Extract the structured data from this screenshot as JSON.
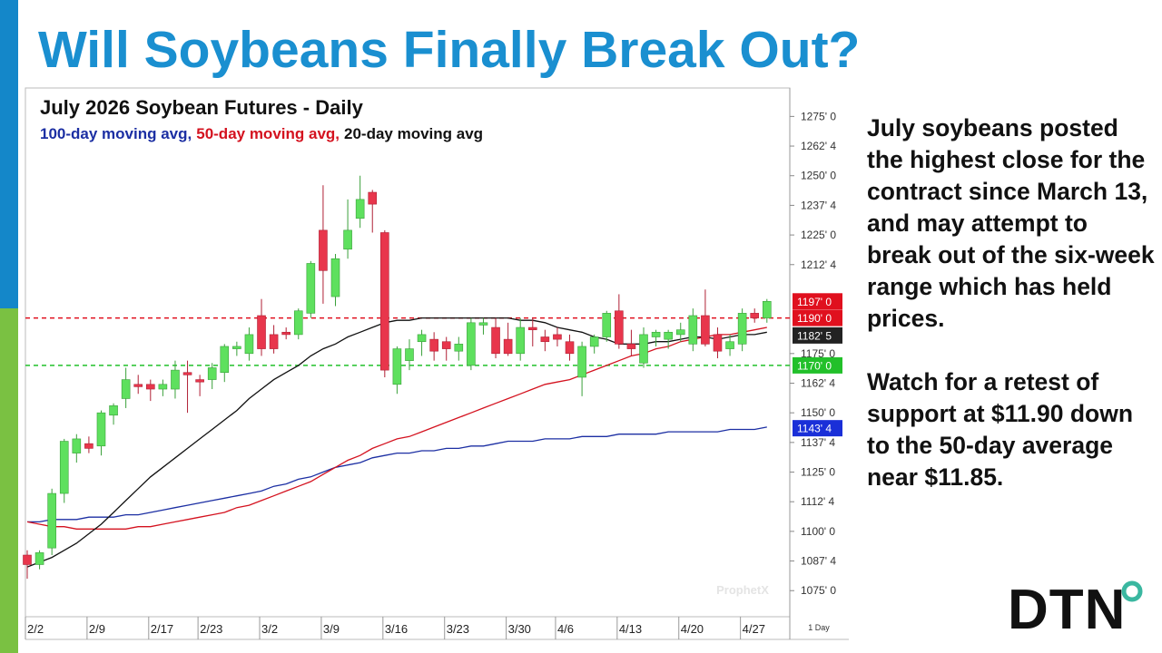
{
  "headline": "Will Soybeans Finally Break Out?",
  "commentary": [
    "July soybeans posted the highest close for the contract since March 13, and may attempt to break out of the six-week range which has held prices.",
    "Watch for a retest of support at $11.90 down to the 50-day average near $11.85."
  ],
  "logo": "DTN",
  "watermark": "ProphetX",
  "chart_data": {
    "type": "candlestick",
    "title": "July 2026 Soybean Futures - Daily",
    "categories": [
      "2/2",
      null,
      null,
      null,
      null,
      "2/9",
      null,
      null,
      null,
      null,
      "2/17",
      null,
      null,
      null,
      "2/23",
      null,
      null,
      null,
      null,
      "3/2",
      null,
      null,
      null,
      null,
      "3/9",
      null,
      null,
      null,
      null,
      "3/16",
      null,
      null,
      null,
      null,
      "3/23",
      null,
      null,
      null,
      null,
      "3/30",
      null,
      null,
      null,
      "4/6",
      null,
      null,
      null,
      null,
      "4/13",
      null,
      null,
      null,
      null,
      "4/20",
      null,
      null,
      null,
      null,
      "4/27",
      null,
      null
    ],
    "open": [
      1090,
      1086,
      1093,
      1116,
      1133,
      1137,
      1136,
      1149,
      1156,
      1162,
      1162,
      1160,
      1160,
      1167,
      1164,
      1164,
      1167,
      1177,
      1175,
      1191,
      1183,
      1184,
      1183,
      1192,
      1227,
      1199,
      1219,
      1232,
      1243,
      1226,
      1162,
      1172,
      1180,
      1181,
      1180,
      1176,
      1170,
      1187,
      1186,
      1181,
      1175,
      1186,
      1182,
      1183,
      1180,
      1165,
      1178,
      1182,
      1193,
      1179,
      1171,
      1182,
      1181,
      1183,
      1179,
      1191,
      1183,
      1177,
      1179,
      1192,
      1190
    ],
    "high": [
      1092,
      1092,
      1118,
      1139,
      1141,
      1140,
      1151,
      1154,
      1169,
      1166,
      1164,
      1164,
      1172,
      1172,
      1166,
      1171,
      1179,
      1180,
      1186,
      1198,
      1187,
      1186,
      1194,
      1214,
      1246,
      1217,
      1240,
      1250,
      1244,
      1227,
      1178,
      1181,
      1185,
      1184,
      1182,
      1182,
      1190,
      1190,
      1190,
      1188,
      1190,
      1190,
      1185,
      1186,
      1183,
      1180,
      1183,
      1193,
      1200,
      1185,
      1186,
      1185,
      1185,
      1188,
      1194,
      1202,
      1186,
      1183,
      1194,
      1194,
      1198
    ],
    "low": [
      1080,
      1084,
      1090,
      1112,
      1129,
      1133,
      1132,
      1145,
      1152,
      1158,
      1155,
      1157,
      1156,
      1150,
      1157,
      1160,
      1163,
      1174,
      1172,
      1174,
      1175,
      1181,
      1181,
      1190,
      1196,
      1195,
      1215,
      1228,
      1226,
      1165,
      1158,
      1168,
      1174,
      1172,
      1172,
      1172,
      1168,
      1183,
      1173,
      1174,
      1172,
      1178,
      1176,
      1178,
      1172,
      1157,
      1175,
      1180,
      1177,
      1174,
      1169,
      1178,
      1177,
      1180,
      1176,
      1178,
      1173,
      1174,
      1176,
      1188,
      1188
    ],
    "close": [
      1086,
      1091,
      1116,
      1138,
      1139,
      1135,
      1150,
      1153,
      1164,
      1161,
      1160,
      1162,
      1168,
      1166,
      1163,
      1169,
      1178,
      1178,
      1183,
      1177,
      1177,
      1183,
      1193,
      1213,
      1210,
      1215,
      1227,
      1240,
      1238,
      1168,
      1177,
      1177,
      1183,
      1176,
      1177,
      1179,
      1188,
      1188,
      1175,
      1175,
      1186,
      1185,
      1180,
      1181,
      1175,
      1178,
      1182,
      1192,
      1179,
      1177,
      1183,
      1184,
      1184,
      1185,
      1191,
      1179,
      1176,
      1180,
      1192,
      1190,
      1197
    ],
    "up_color": "#5ee05e",
    "down_color": "#e8364c",
    "series": [
      {
        "name": "100-day moving avg,",
        "color": "#1c2fa3",
        "values": [
          1104,
          1104,
          1105,
          1105,
          1105,
          1106,
          1106,
          1106,
          1107,
          1107,
          1108,
          1109,
          1110,
          1111,
          1112,
          1113,
          1114,
          1115,
          1116,
          1117,
          1119,
          1120,
          1122,
          1123,
          1125,
          1127,
          1128,
          1129,
          1131,
          1132,
          1133,
          1133,
          1134,
          1134,
          1135,
          1135,
          1136,
          1136,
          1137,
          1138,
          1138,
          1138,
          1139,
          1139,
          1139,
          1140,
          1140,
          1140,
          1141,
          1141,
          1141,
          1141,
          1142,
          1142,
          1142,
          1142,
          1142,
          1143,
          1143,
          1143,
          1144
        ]
      },
      {
        "name": "50-day moving avg,",
        "color": "#d4121f",
        "values": [
          1104,
          1103,
          1102,
          1102,
          1101,
          1101,
          1101,
          1101,
          1101,
          1102,
          1102,
          1103,
          1104,
          1105,
          1106,
          1107,
          1108,
          1110,
          1111,
          1113,
          1115,
          1117,
          1119,
          1121,
          1124,
          1127,
          1130,
          1132,
          1135,
          1137,
          1139,
          1140,
          1142,
          1144,
          1146,
          1148,
          1150,
          1152,
          1154,
          1156,
          1158,
          1160,
          1162,
          1163,
          1164,
          1166,
          1168,
          1170,
          1172,
          1174,
          1175,
          1177,
          1178,
          1180,
          1181,
          1182,
          1183,
          1183,
          1184,
          1185,
          1186
        ]
      },
      {
        "name": "20-day moving avg",
        "color": "#111111",
        "values": [
          1085,
          1087,
          1089,
          1092,
          1095,
          1099,
          1103,
          1108,
          1113,
          1118,
          1123,
          1127,
          1131,
          1135,
          1139,
          1143,
          1147,
          1151,
          1156,
          1160,
          1164,
          1167,
          1170,
          1174,
          1177,
          1179,
          1182,
          1184,
          1186,
          1188,
          1189,
          1189,
          1190,
          1190,
          1190,
          1190,
          1190,
          1190,
          1190,
          1190,
          1189,
          1189,
          1188,
          1186,
          1185,
          1184,
          1182,
          1181,
          1179,
          1179,
          1179,
          1180,
          1180,
          1181,
          1182,
          1182,
          1181,
          1182,
          1183,
          1183,
          1184
        ]
      }
    ],
    "ylim": [
      1064,
      1287
    ],
    "yticks": [
      {
        "value": 1075,
        "label": "1075' 0"
      },
      {
        "value": 1087.5,
        "label": "1087' 4"
      },
      {
        "value": 1100,
        "label": "1100' 0"
      },
      {
        "value": 1112.5,
        "label": "1112' 4"
      },
      {
        "value": 1125,
        "label": "1125' 0"
      },
      {
        "value": 1137.5,
        "label": "1137' 4"
      },
      {
        "value": 1150,
        "label": "1150' 0"
      },
      {
        "value": 1162.5,
        "label": "1162' 4"
      },
      {
        "value": 1175,
        "label": "1175' 0"
      },
      {
        "value": 1212.5,
        "label": "1212' 4"
      },
      {
        "value": 1225,
        "label": "1225' 0"
      },
      {
        "value": 1237.5,
        "label": "1237' 4"
      },
      {
        "value": 1250,
        "label": "1250' 0"
      },
      {
        "value": 1262.5,
        "label": "1262' 4"
      },
      {
        "value": 1275,
        "label": "1275' 0"
      }
    ],
    "levels": [
      {
        "value": 1190,
        "label": "1190' 0",
        "color": "#e0101e"
      },
      {
        "value": 1170,
        "label": "1170' 0",
        "color": "#22c02a"
      }
    ],
    "price_tags": [
      {
        "value": 1197,
        "label": "1197' 0",
        "color": "#e0101e"
      },
      {
        "value": 1182.625,
        "label": "1182' 5",
        "color": "#222222"
      },
      {
        "value": 1143.5,
        "label": "1143' 4",
        "color": "#1a2fd8"
      }
    ],
    "x_unit_label": "1 Day"
  }
}
